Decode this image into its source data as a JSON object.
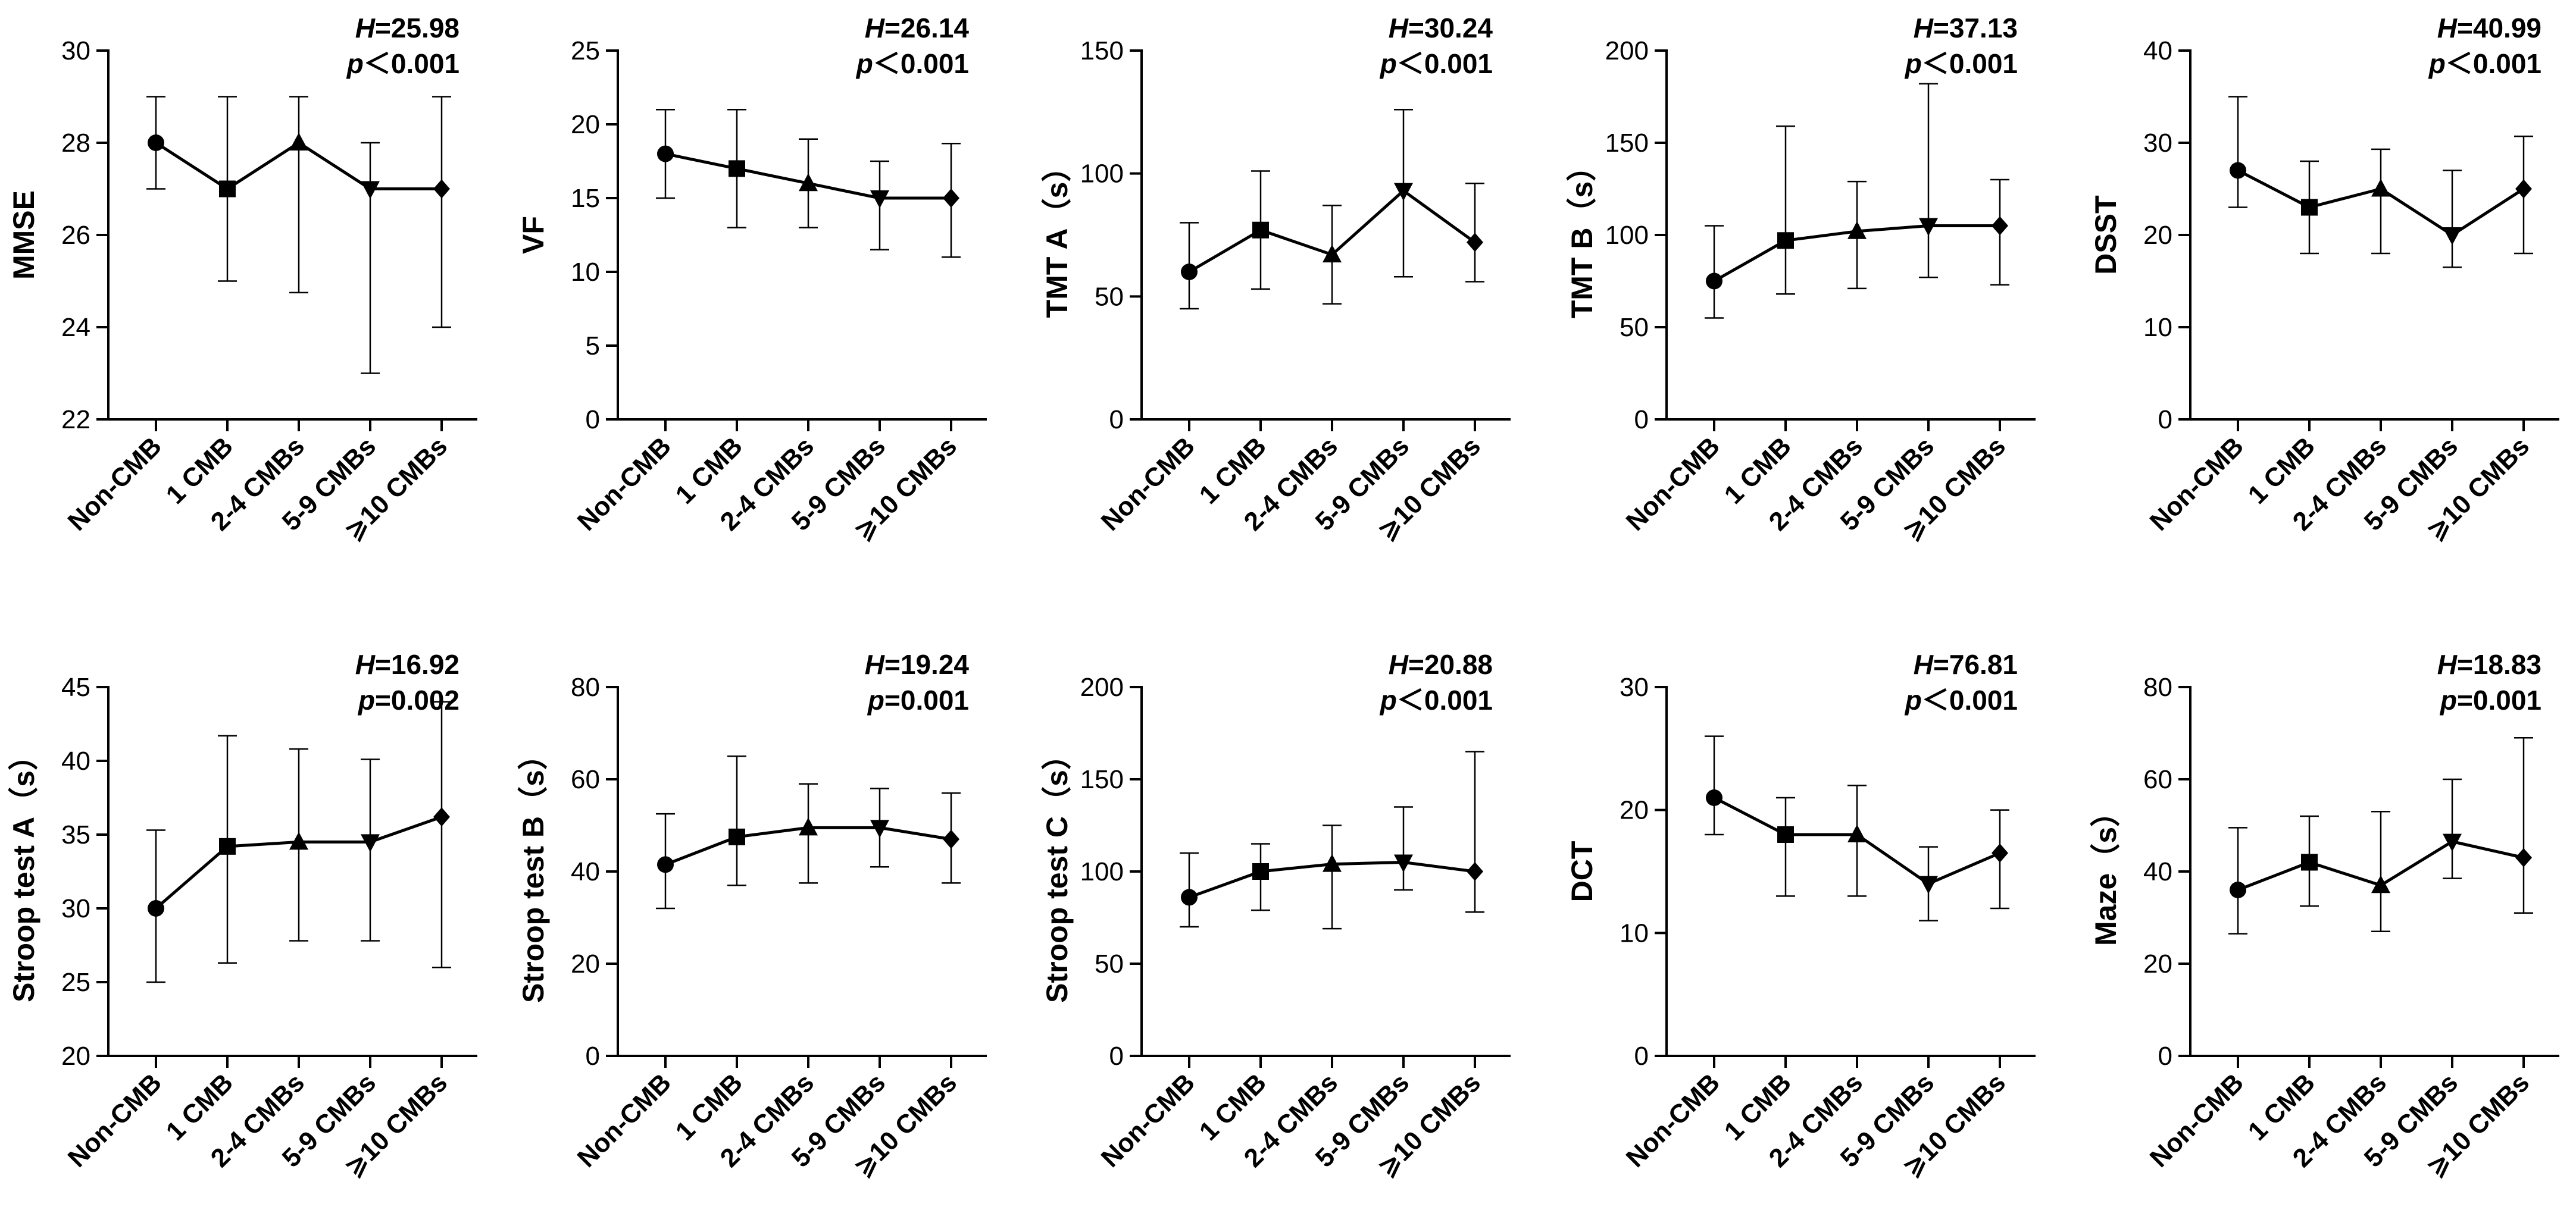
{
  "figure_title": "",
  "chart_data": [
    {
      "type": "line",
      "ylabel": "MMSE",
      "ylim": [
        22,
        30
      ],
      "yticks": [
        22,
        24,
        26,
        28,
        30
      ],
      "categories": [
        "Non-CMB",
        "1 CMB",
        "2-4 CMBs",
        "5-9 CMBs",
        "⩾10 CMBs"
      ],
      "values": [
        28,
        27,
        28,
        27,
        27
      ],
      "err_low": [
        27,
        25,
        24.75,
        23,
        24
      ],
      "err_high": [
        29,
        29,
        29,
        28,
        29
      ],
      "stat_h_label": "H",
      "stat_h_value": "=25.98",
      "stat_p_label": "p",
      "stat_p_value": "＜0.001"
    },
    {
      "type": "line",
      "ylabel": "VF",
      "ylim": [
        0,
        25
      ],
      "yticks": [
        0,
        5,
        10,
        15,
        20,
        25
      ],
      "categories": [
        "Non-CMB",
        "1 CMB",
        "2-4 CMBs",
        "5-9 CMBs",
        "⩾10 CMBs"
      ],
      "values": [
        18,
        17,
        16,
        15,
        15
      ],
      "err_low": [
        15,
        13,
        13,
        11.5,
        11
      ],
      "err_high": [
        21,
        21,
        19,
        17.5,
        18.7
      ],
      "stat_h_label": "H",
      "stat_h_value": "=26.14",
      "stat_p_label": "p",
      "stat_p_value": "＜0.001"
    },
    {
      "type": "line",
      "ylabel": "TMT A（s）",
      "ylim": [
        0,
        150
      ],
      "yticks": [
        0,
        50,
        100,
        150
      ],
      "categories": [
        "Non-CMB",
        "1 CMB",
        "2-4 CMBs",
        "5-9 CMBs",
        "⩾10 CMBs"
      ],
      "values": [
        60,
        77,
        67,
        93,
        72
      ],
      "err_low": [
        45,
        53,
        47,
        58,
        56
      ],
      "err_high": [
        80,
        101,
        87,
        126,
        96
      ],
      "stat_h_label": "H",
      "stat_h_value": "=30.24",
      "stat_p_label": "p",
      "stat_p_value": "＜0.001"
    },
    {
      "type": "line",
      "ylabel": "TMT B（s）",
      "ylim": [
        0,
        200
      ],
      "yticks": [
        0,
        50,
        100,
        150,
        200
      ],
      "categories": [
        "Non-CMB",
        "1 CMB",
        "2-4 CMBs",
        "5-9 CMBs",
        "⩾10 CMBs"
      ],
      "values": [
        75,
        97,
        102,
        105,
        105
      ],
      "err_low": [
        55,
        68,
        71,
        77,
        73
      ],
      "err_high": [
        105,
        159,
        129,
        182,
        130
      ],
      "stat_h_label": "H",
      "stat_h_value": "=37.13",
      "stat_p_label": "p",
      "stat_p_value": "＜0.001"
    },
    {
      "type": "line",
      "ylabel": "DSST",
      "ylim": [
        0,
        40
      ],
      "yticks": [
        0,
        10,
        20,
        30,
        40
      ],
      "categories": [
        "Non-CMB",
        "1 CMB",
        "2-4 CMBs",
        "5-9 CMBs",
        "⩾10 CMBs"
      ],
      "values": [
        27,
        23,
        25,
        20,
        25
      ],
      "err_low": [
        23,
        18,
        18,
        16.5,
        18
      ],
      "err_high": [
        35,
        28,
        29.3,
        27,
        30.7
      ],
      "stat_h_label": "H",
      "stat_h_value": "=40.99",
      "stat_p_label": "p",
      "stat_p_value": "＜0.001"
    },
    {
      "type": "line",
      "ylabel": "Stroop test A（s）",
      "ylim": [
        20,
        45
      ],
      "yticks": [
        20,
        25,
        30,
        35,
        40,
        45
      ],
      "categories": [
        "Non-CMB",
        "1 CMB",
        "2-4 CMBs",
        "5-9 CMBs",
        "⩾10 CMBs"
      ],
      "values": [
        30,
        34.2,
        34.5,
        34.5,
        36.2
      ],
      "err_low": [
        25,
        26.3,
        27.8,
        27.8,
        26
      ],
      "err_high": [
        35.3,
        41.7,
        40.8,
        40.1,
        44
      ],
      "stat_h_label": "H",
      "stat_h_value": "=16.92",
      "stat_p_label": "p",
      "stat_p_value": "=0.002"
    },
    {
      "type": "line",
      "ylabel": "Stroop test B（s）",
      "ylim": [
        0,
        80
      ],
      "yticks": [
        0,
        20,
        40,
        60,
        80
      ],
      "categories": [
        "Non-CMB",
        "1 CMB",
        "2-4 CMBs",
        "5-9 CMBs",
        "⩾10 CMBs"
      ],
      "values": [
        41.5,
        47.5,
        49.5,
        49.5,
        47
      ],
      "err_low": [
        32,
        37,
        37.5,
        41,
        37.5
      ],
      "err_high": [
        52.5,
        65,
        59,
        58,
        57
      ],
      "stat_h_label": "H",
      "stat_h_value": "=19.24",
      "stat_p_label": "p",
      "stat_p_value": "=0.001"
    },
    {
      "type": "line",
      "ylabel": "Stroop test C（s）",
      "ylim": [
        0,
        200
      ],
      "yticks": [
        0,
        50,
        100,
        150,
        200
      ],
      "categories": [
        "Non-CMB",
        "1 CMB",
        "2-4 CMBs",
        "5-9 CMBs",
        "⩾10 CMBs"
      ],
      "values": [
        86,
        100,
        104,
        105,
        100
      ],
      "err_low": [
        70,
        79,
        69,
        90,
        78
      ],
      "err_high": [
        110,
        115,
        125,
        135,
        165
      ],
      "stat_h_label": "H",
      "stat_h_value": "=20.88",
      "stat_p_label": "p",
      "stat_p_value": "＜0.001"
    },
    {
      "type": "line",
      "ylabel": "DCT",
      "ylim": [
        0,
        30
      ],
      "yticks": [
        0,
        10,
        20,
        30
      ],
      "categories": [
        "Non-CMB",
        "1 CMB",
        "2-4 CMBs",
        "5-9 CMBs",
        "⩾10 CMBs"
      ],
      "values": [
        21,
        18,
        18,
        14,
        16.5
      ],
      "err_low": [
        18,
        13,
        13,
        11,
        12
      ],
      "err_high": [
        26,
        21,
        22,
        17,
        20
      ],
      "stat_h_label": "H",
      "stat_h_value": "=76.81",
      "stat_p_label": "p",
      "stat_p_value": "＜0.001"
    },
    {
      "type": "line",
      "ylabel": "Maze（s）",
      "ylim": [
        0,
        80
      ],
      "yticks": [
        0,
        20,
        40,
        60,
        80
      ],
      "categories": [
        "Non-CMB",
        "1 CMB",
        "2-4 CMBs",
        "5-9 CMBs",
        "⩾10 CMBs"
      ],
      "values": [
        36,
        42,
        37,
        46.5,
        43
      ],
      "err_low": [
        26.5,
        32.5,
        27,
        38.5,
        31
      ],
      "err_high": [
        49.5,
        52,
        53,
        60,
        69
      ],
      "stat_h_label": "H",
      "stat_h_value": "=18.83",
      "stat_p_label": "p",
      "stat_p_value": "=0.001"
    }
  ],
  "marker_shapes": [
    "circle",
    "square",
    "triangle-up",
    "triangle-down",
    "diamond"
  ]
}
